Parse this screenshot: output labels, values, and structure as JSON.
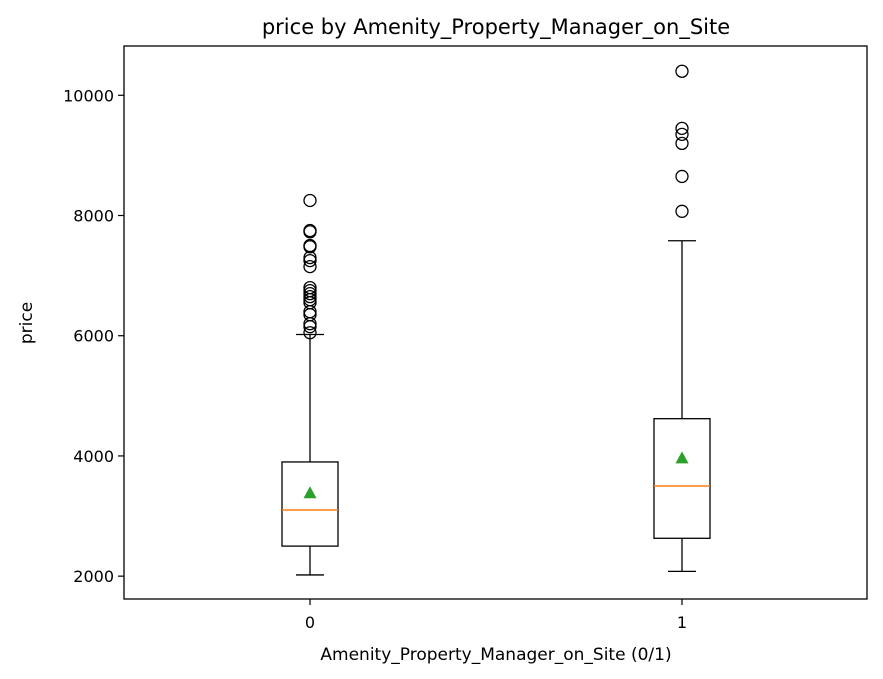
{
  "chart_data": {
    "type": "box",
    "title": "price by Amenity_Property_Manager_on_Site",
    "xlabel": "Amenity_Property_Manager_on_Site (0/1)",
    "ylabel": "price",
    "categories": [
      "0",
      "1"
    ],
    "ylim": [
      1620,
      10820
    ],
    "yticks": [
      2000,
      4000,
      6000,
      8000,
      10000
    ],
    "grid": false,
    "colors": {
      "median": "#ff7f0e",
      "mean": "#2ca02c",
      "box": "#000000"
    },
    "boxes": [
      {
        "category": "0",
        "whisker_low": 2020,
        "q1": 2500,
        "median": 3100,
        "q3": 3900,
        "whisker_high": 6020,
        "mean": 3380,
        "outliers": [
          6050,
          6150,
          6200,
          6350,
          6400,
          6550,
          6600,
          6650,
          6700,
          6750,
          6800,
          7150,
          7250,
          7300,
          7480,
          7500,
          7730,
          7750,
          8250
        ]
      },
      {
        "category": "1",
        "whisker_low": 2080,
        "q1": 2630,
        "median": 3500,
        "q3": 4620,
        "whisker_high": 7580,
        "mean": 3960,
        "outliers": [
          8070,
          8650,
          9200,
          9350,
          9450,
          10400
        ]
      }
    ]
  }
}
